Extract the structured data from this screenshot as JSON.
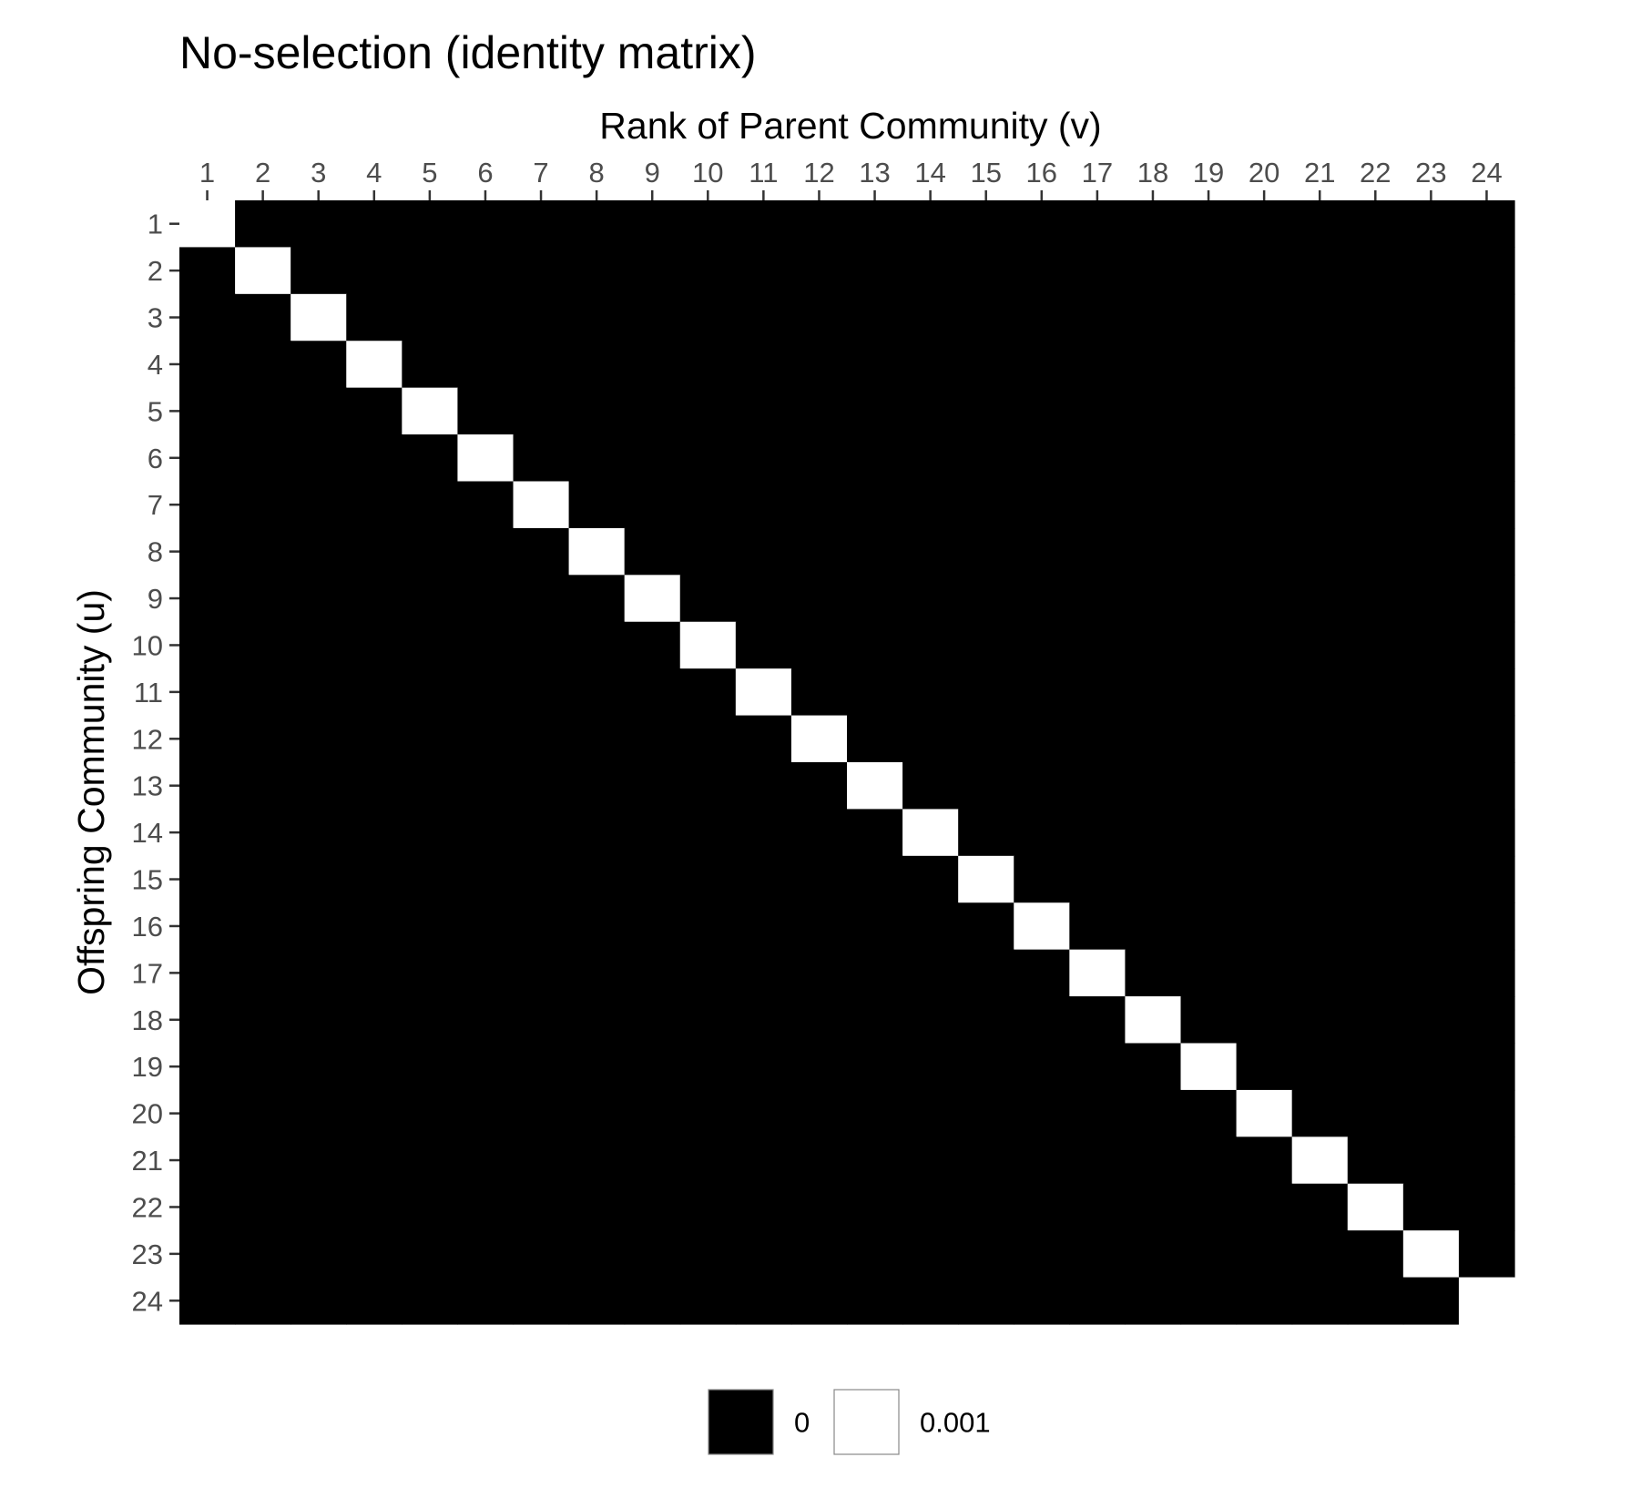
{
  "chart_data": {
    "type": "heatmap",
    "title": "No-selection (identity matrix)",
    "xlabel": "Rank of Parent Community (v)",
    "ylabel": "Offspring Community (u)",
    "x_categories": [
      "1",
      "2",
      "3",
      "4",
      "5",
      "6",
      "7",
      "8",
      "9",
      "10",
      "11",
      "12",
      "13",
      "14",
      "15",
      "16",
      "17",
      "18",
      "19",
      "20",
      "21",
      "22",
      "23",
      "24"
    ],
    "y_categories": [
      "1",
      "2",
      "3",
      "4",
      "5",
      "6",
      "7",
      "8",
      "9",
      "10",
      "11",
      "12",
      "13",
      "14",
      "15",
      "16",
      "17",
      "18",
      "19",
      "20",
      "21",
      "22",
      "23",
      "24"
    ],
    "cell_rule": "identity",
    "diagonal_value": 0.001,
    "off_diagonal_value": 0,
    "x_axis_position": "top",
    "legend_position": "bottom",
    "grid": false,
    "legend": [
      {
        "label": "0",
        "color": "#000000"
      },
      {
        "label": "0.001",
        "color": "#ffffff"
      }
    ],
    "colors": {
      "low": "#000000",
      "high": "#ffffff"
    }
  }
}
